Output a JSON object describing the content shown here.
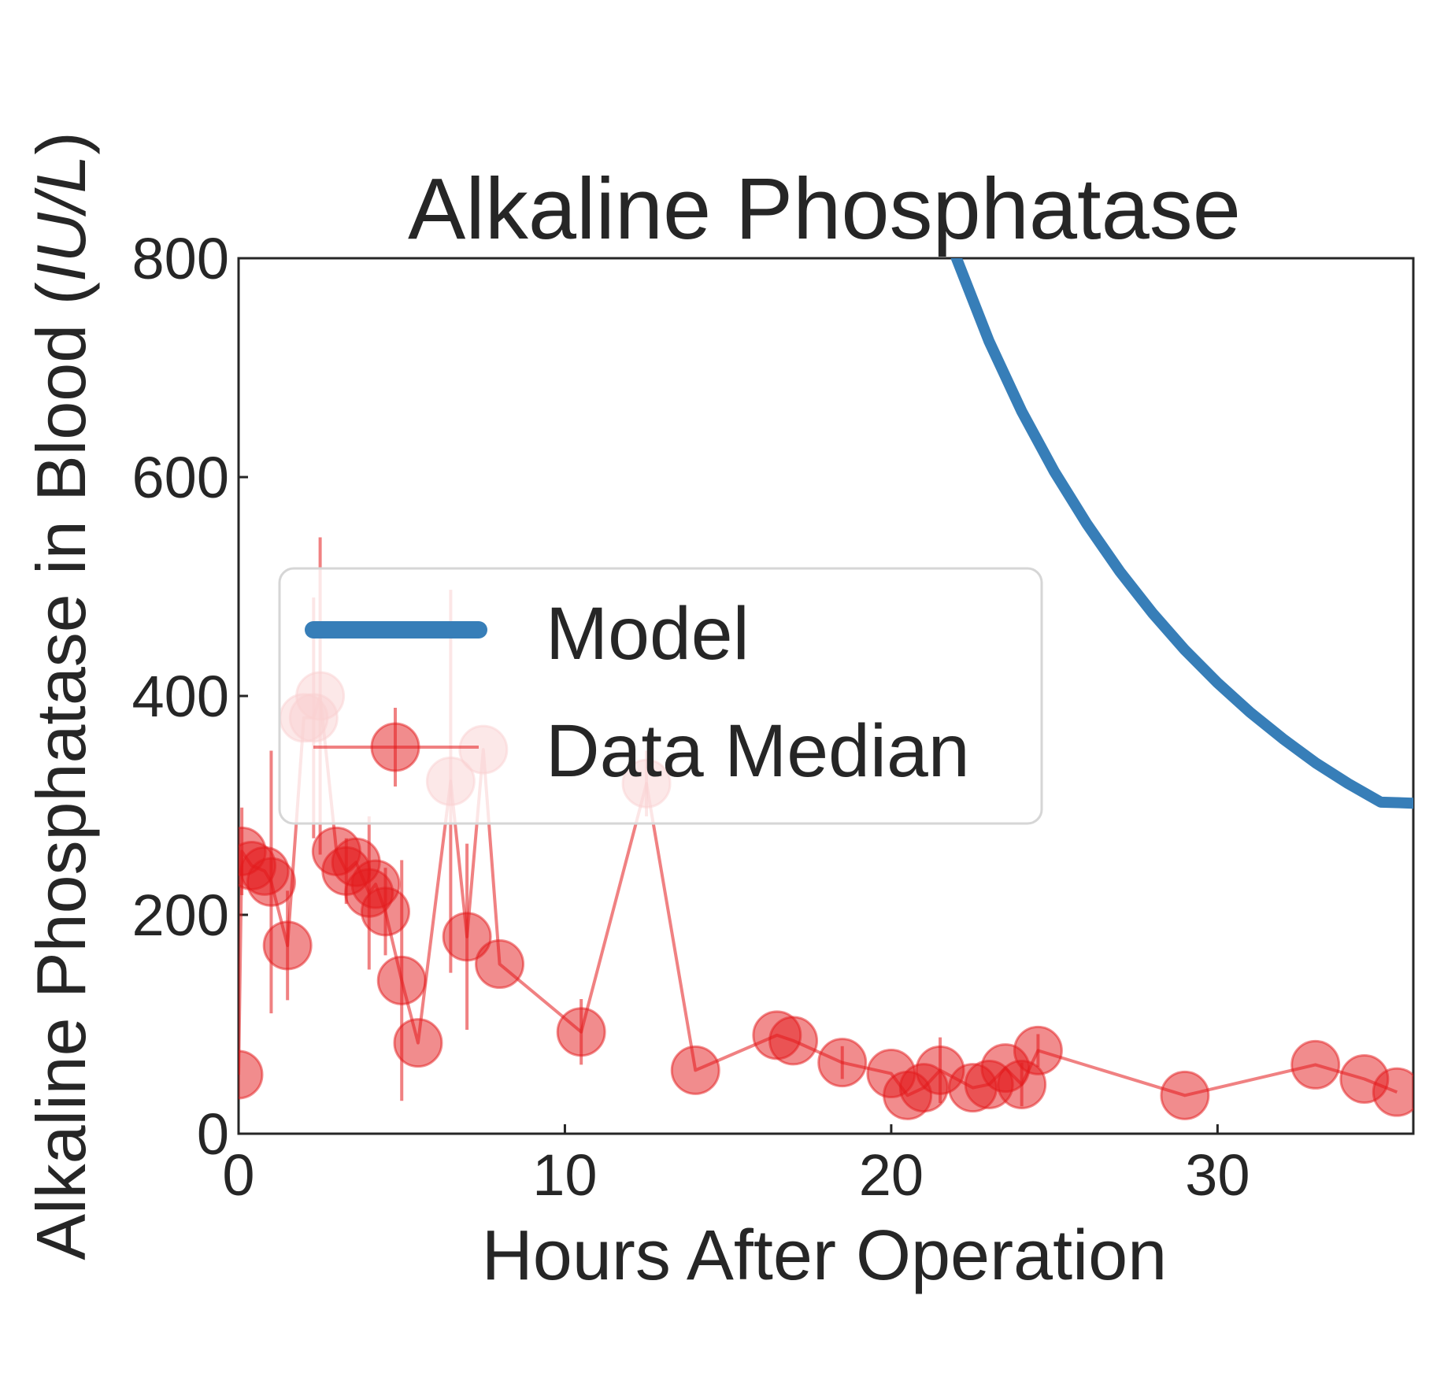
{
  "chart_data": {
    "type": "line",
    "title": "Alkaline Phosphatase",
    "xlabel": "Hours After Operation",
    "ylabel": "Alkaline Phosphatase in Blood (IU/L)",
    "ylabel_prefix": "Alkaline Phosphatase in Blood (",
    "ylabel_unit": "IU/L",
    "ylabel_suffix": ")",
    "xlim": [
      0,
      36
    ],
    "ylim": [
      0,
      800
    ],
    "xticks": [
      0,
      10,
      20,
      30
    ],
    "yticks": [
      0,
      200,
      400,
      600,
      800
    ],
    "grid": false,
    "legend_position": "center-left",
    "legend": [
      "Model",
      "Data Median"
    ],
    "series": [
      {
        "name": "Model",
        "color": "#377eb8",
        "x": [
          22,
          23,
          24,
          25,
          26,
          27,
          28,
          29,
          30,
          31,
          32,
          33,
          34,
          35,
          36
        ],
        "y": [
          800,
          724,
          660,
          605,
          557,
          514,
          476,
          442,
          412,
          385,
          361,
          339,
          320,
          303,
          302
        ]
      },
      {
        "name": "Data Median",
        "color": "#e41a1c",
        "x": [
          0,
          0.1,
          0.4,
          0.8,
          1.0,
          1.5,
          2.0,
          2.3,
          2.5,
          3.0,
          3.3,
          3.6,
          4.0,
          4.2,
          4.5,
          5.0,
          5.5,
          6.5,
          7.0,
          7.5,
          8.0,
          10.5,
          12.5,
          14.0,
          16.5,
          17.0,
          18.5,
          20.0,
          20.5,
          21.0,
          21.5,
          22.5,
          23.0,
          23.5,
          24.0,
          24.5,
          29.0,
          33.0,
          34.5,
          35.5
        ],
        "y": [
          54,
          258,
          245,
          240,
          230,
          172,
          380,
          380,
          400,
          258,
          240,
          248,
          220,
          228,
          203,
          140,
          83,
          322,
          180,
          351,
          155,
          93,
          320,
          58,
          90,
          85,
          65,
          55,
          35,
          42,
          58,
          42,
          45,
          60,
          45,
          76,
          35,
          63,
          50,
          38
        ],
        "yerr": [
          0,
          40,
          0,
          0,
          120,
          50,
          0,
          110,
          145,
          0,
          30,
          0,
          70,
          0,
          40,
          110,
          0,
          175,
          85,
          0,
          0,
          30,
          30,
          0,
          0,
          0,
          15,
          0,
          0,
          0,
          30,
          0,
          0,
          0,
          20,
          15,
          0,
          0,
          0,
          0
        ]
      }
    ]
  }
}
